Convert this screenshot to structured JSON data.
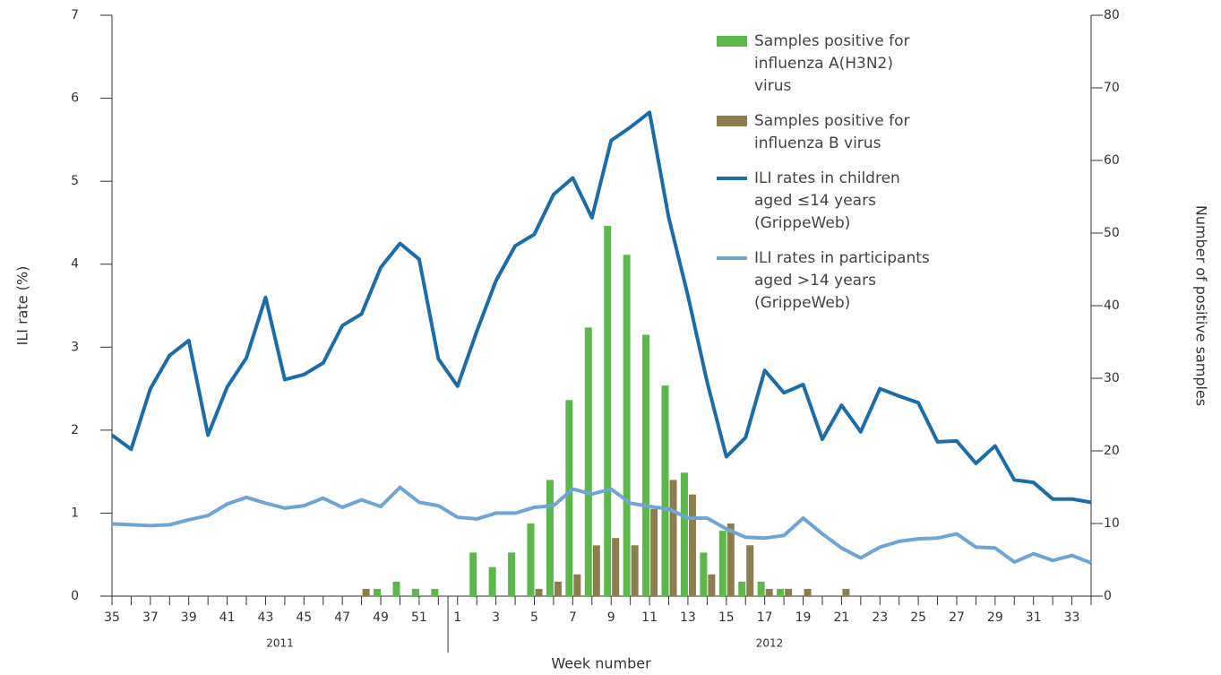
{
  "chart_data": {
    "type": "combo",
    "x_label": "Week number",
    "y_label": "ILI rate (%)",
    "y2_label": "Number of positive samples",
    "annotations": [
      "2011",
      "2012"
    ],
    "categories": [
      "35",
      null,
      "37",
      null,
      "39",
      null,
      "41",
      null,
      "43",
      null,
      "45",
      null,
      "47",
      null,
      "49",
      null,
      "51",
      null,
      "1",
      null,
      "3",
      null,
      "5",
      null,
      "7",
      null,
      "9",
      null,
      "11",
      null,
      "13",
      null,
      "15",
      null,
      "17",
      null,
      "19",
      null,
      "21",
      null,
      "23",
      null,
      "25",
      null,
      "27",
      null,
      "29",
      null,
      "31",
      null,
      "33",
      null
    ],
    "ylim": [
      0,
      7
    ],
    "yticks": [
      0,
      1,
      2,
      3,
      4,
      5,
      6,
      7
    ],
    "y2lim": [
      0,
      80
    ],
    "y2ticks": [
      0,
      10,
      20,
      30,
      40,
      50,
      60,
      70,
      80
    ],
    "legend": "top-right",
    "series": [
      {
        "name": "Samples positive for influenza A(H3N2) virus",
        "type": "bar",
        "axis": "y2",
        "color": "#5cb84a",
        "values": [
          0,
          0,
          0,
          0,
          0,
          0,
          0,
          0,
          0,
          0,
          0,
          0,
          0,
          0,
          1,
          2,
          1,
          1,
          0,
          6,
          4,
          6,
          10,
          16,
          27,
          37,
          51,
          47,
          36,
          29,
          17,
          6,
          9,
          2,
          2,
          1,
          0,
          0,
          0,
          0,
          0,
          0,
          0,
          0,
          0,
          0,
          0,
          0,
          0,
          0,
          0,
          0
        ]
      },
      {
        "name": "Samples positive for influenza B virus",
        "type": "bar",
        "axis": "y2",
        "color": "#8c7d4f",
        "values": [
          0,
          0,
          0,
          0,
          0,
          0,
          0,
          0,
          0,
          0,
          0,
          0,
          0,
          1,
          0,
          0,
          0,
          0,
          0,
          0,
          0,
          0,
          1,
          2,
          3,
          7,
          8,
          7,
          12,
          16,
          14,
          3,
          10,
          7,
          1,
          1,
          1,
          0,
          1,
          0,
          0,
          0,
          0,
          0,
          0,
          0,
          0,
          0,
          0,
          0,
          0,
          0
        ]
      },
      {
        "name": "ILI rates in children aged ≤14 years (GrippeWeb)",
        "type": "line",
        "axis": "y",
        "color": "#1b6ca8",
        "values": [
          1.94,
          1.77,
          2.5,
          2.9,
          3.08,
          1.94,
          2.52,
          2.87,
          3.6,
          2.61,
          2.67,
          2.81,
          3.26,
          3.4,
          3.96,
          4.25,
          4.06,
          2.86,
          2.53,
          3.19,
          3.8,
          4.22,
          4.36,
          4.84,
          5.04,
          4.56,
          5.49,
          5.65,
          5.83,
          4.56,
          3.62,
          2.58,
          1.68,
          1.91,
          2.72,
          2.45,
          2.55,
          1.89,
          2.3,
          1.98,
          2.5,
          2.41,
          2.33,
          1.86,
          1.87,
          1.6,
          1.81,
          1.4,
          1.37,
          1.17,
          1.17,
          1.13
        ]
      },
      {
        "name": "ILI rates in participants aged >14 years (GrippeWeb)",
        "type": "line",
        "axis": "y",
        "color": "#6ea4d6",
        "values": [
          0.87,
          0.86,
          0.85,
          0.86,
          0.92,
          0.97,
          1.11,
          1.19,
          1.12,
          1.06,
          1.09,
          1.18,
          1.07,
          1.16,
          1.08,
          1.31,
          1.13,
          1.09,
          0.95,
          0.93,
          1.0,
          1.0,
          1.07,
          1.09,
          1.29,
          1.23,
          1.29,
          1.12,
          1.08,
          1.05,
          0.94,
          0.94,
          0.81,
          0.71,
          0.7,
          0.73,
          0.94,
          0.75,
          0.58,
          0.46,
          0.59,
          0.66,
          0.69,
          0.7,
          0.75,
          0.59,
          0.58,
          0.41,
          0.51,
          0.43,
          0.49,
          0.4
        ]
      }
    ]
  }
}
